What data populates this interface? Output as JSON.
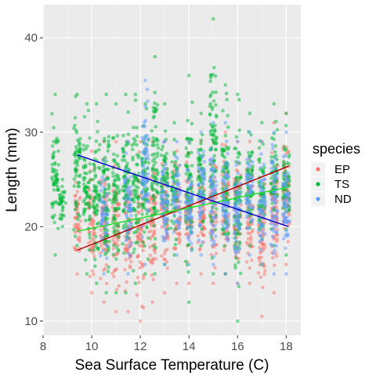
{
  "chart_data": {
    "type": "scatter",
    "xlabel": "Sea Surface Temperature (C)",
    "ylabel": "Length (mm)",
    "xlim": [
      8,
      18.6
    ],
    "ylim": [
      8.5,
      43.5
    ],
    "x_ticks": [
      8,
      10,
      12,
      14,
      16,
      18
    ],
    "y_ticks": [
      10,
      20,
      30,
      40
    ],
    "grid": true,
    "legend": {
      "title": "species",
      "position": "right",
      "entries": [
        {
          "label": "EP",
          "color": "#F8766D"
        },
        {
          "label": "TS",
          "color": "#00BA38"
        },
        {
          "label": "ND",
          "color": "#619CFF"
        }
      ]
    },
    "series": [
      {
        "name": "EP",
        "color": "#F8766D",
        "trend": {
          "x": [
            9.4,
            18.1
          ],
          "y": [
            17.5,
            26.4
          ]
        },
        "columns": [
          {
            "x": 9.4,
            "ymin": 15,
            "ymax": 26
          },
          {
            "x": 10.0,
            "ymin": 13,
            "ymax": 28
          },
          {
            "x": 10.5,
            "ymin": 12,
            "ymax": 29
          },
          {
            "x": 11.0,
            "ymin": 11,
            "ymax": 29
          },
          {
            "x": 11.5,
            "ymin": 11,
            "ymax": 29
          },
          {
            "x": 12.0,
            "ymin": 10,
            "ymax": 29
          },
          {
            "x": 12.5,
            "ymin": 12,
            "ymax": 29
          },
          {
            "x": 13.0,
            "ymin": 13,
            "ymax": 29
          },
          {
            "x": 13.5,
            "ymin": 14,
            "ymax": 28
          },
          {
            "x": 14.0,
            "ymin": 14,
            "ymax": 29
          },
          {
            "x": 14.5,
            "ymin": 15,
            "ymax": 29
          },
          {
            "x": 15.0,
            "ymin": 14,
            "ymax": 29
          },
          {
            "x": 15.5,
            "ymin": 15,
            "ymax": 30
          },
          {
            "x": 16.0,
            "ymin": 14,
            "ymax": 29
          },
          {
            "x": 16.5,
            "ymin": 14,
            "ymax": 29
          },
          {
            "x": 17.0,
            "ymin": 10.5,
            "ymax": 29
          },
          {
            "x": 17.5,
            "ymin": 13,
            "ymax": 31
          },
          {
            "x": 18.0,
            "ymin": 16,
            "ymax": 32
          }
        ]
      },
      {
        "name": "TS",
        "color": "#00BA38",
        "trend": {
          "x": [
            9.4,
            18.1
          ],
          "y": [
            19.5,
            24.2
          ]
        },
        "columns": [
          {
            "x": 8.5,
            "ymin": 17,
            "ymax": 34
          },
          {
            "x": 8.8,
            "ymin": 20,
            "ymax": 25
          },
          {
            "x": 9.4,
            "ymin": 18,
            "ymax": 34
          },
          {
            "x": 9.8,
            "ymin": 15,
            "ymax": 33
          },
          {
            "x": 10.2,
            "ymin": 14,
            "ymax": 33
          },
          {
            "x": 10.6,
            "ymin": 13,
            "ymax": 34
          },
          {
            "x": 11.0,
            "ymin": 13,
            "ymax": 33
          },
          {
            "x": 11.4,
            "ymin": 13,
            "ymax": 34
          },
          {
            "x": 11.8,
            "ymin": 14,
            "ymax": 34
          },
          {
            "x": 12.2,
            "ymin": 15,
            "ymax": 33
          },
          {
            "x": 12.6,
            "ymin": 15,
            "ymax": 38
          },
          {
            "x": 13.0,
            "ymin": 16,
            "ymax": 33
          },
          {
            "x": 13.4,
            "ymin": 17,
            "ymax": 31
          },
          {
            "x": 14.0,
            "ymin": 12,
            "ymax": 36
          },
          {
            "x": 14.5,
            "ymin": 18,
            "ymax": 32
          },
          {
            "x": 15.0,
            "ymin": 15,
            "ymax": 42
          },
          {
            "x": 15.5,
            "ymin": 15,
            "ymax": 35
          },
          {
            "x": 16.0,
            "ymin": 10,
            "ymax": 34
          },
          {
            "x": 16.5,
            "ymin": 18,
            "ymax": 32
          },
          {
            "x": 17.0,
            "ymin": 16,
            "ymax": 31
          },
          {
            "x": 17.5,
            "ymin": 18,
            "ymax": 33
          },
          {
            "x": 18.0,
            "ymin": 17,
            "ymax": 32
          }
        ]
      },
      {
        "name": "ND",
        "color": "#619CFF",
        "trend": {
          "x": [
            9.4,
            18.1
          ],
          "y": [
            27.6,
            20.0
          ]
        },
        "columns": [
          {
            "x": 10.5,
            "ymin": 15,
            "ymax": 27
          },
          {
            "x": 11.5,
            "ymin": 15,
            "ymax": 29
          },
          {
            "x": 12.2,
            "ymin": 16,
            "ymax": 35.5
          },
          {
            "x": 13.0,
            "ymin": 16,
            "ymax": 29
          },
          {
            "x": 13.5,
            "ymin": 17,
            "ymax": 29
          },
          {
            "x": 14.0,
            "ymin": 16,
            "ymax": 29
          },
          {
            "x": 14.5,
            "ymin": 17,
            "ymax": 30
          },
          {
            "x": 15.0,
            "ymin": 16,
            "ymax": 31
          },
          {
            "x": 15.5,
            "ymin": 15,
            "ymax": 31
          },
          {
            "x": 16.0,
            "ymin": 14,
            "ymax": 29
          },
          {
            "x": 16.5,
            "ymin": 17,
            "ymax": 30
          },
          {
            "x": 17.0,
            "ymin": 16,
            "ymax": 29
          },
          {
            "x": 17.5,
            "ymin": 15,
            "ymax": 30
          },
          {
            "x": 18.0,
            "ymin": 15,
            "ymax": 30
          }
        ]
      }
    ]
  }
}
